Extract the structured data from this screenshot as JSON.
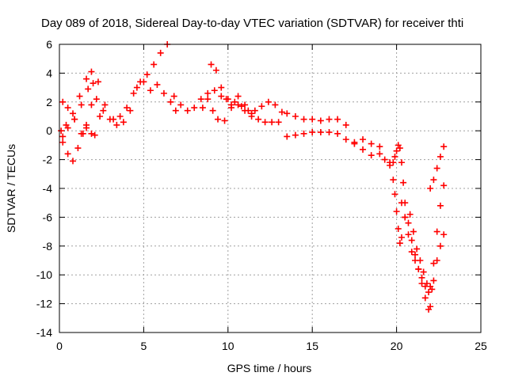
{
  "chart_data": {
    "type": "scatter",
    "title": "Day 089 of 2018, Sidereal Day-to-day VTEC variation (SDTVAR) for receiver thti",
    "xlabel": "GPS time / hours",
    "ylabel": "SDTVAR / TECUs",
    "xlim": [
      0,
      25
    ],
    "ylim": [
      -14,
      6
    ],
    "xticks": [
      "0",
      "5",
      "10",
      "15",
      "20",
      "25"
    ],
    "yticks": [
      "-14",
      "-12",
      "-10",
      "-8",
      "-6",
      "-4",
      "-2",
      "0",
      "2",
      "4",
      "6"
    ],
    "grid": true,
    "marker": "+",
    "color": "#ff0000",
    "series": [
      {
        "x": [
          0.1,
          0.4,
          0.8,
          1.2,
          1.6,
          1.9,
          2.3,
          2.7,
          3.2,
          3.6,
          4.0,
          4.4,
          4.8,
          5.2,
          5.6,
          6.0,
          6.4
        ],
        "y": [
          0.0,
          0.4,
          1.2,
          2.4,
          3.6,
          4.1,
          3.4,
          1.8,
          0.8,
          1.0,
          1.6,
          2.6,
          3.4,
          3.9,
          4.6,
          5.4,
          6.0
        ]
      },
      {
        "x": [
          0.2,
          0.5,
          0.9,
          1.3,
          1.6,
          1.9,
          2.2,
          2.6,
          3.0,
          3.4,
          3.8,
          4.2
        ],
        "y": [
          2.0,
          1.6,
          0.8,
          -0.2,
          0.2,
          1.8,
          2.2,
          1.4,
          0.8,
          0.4,
          0.6,
          1.4
        ]
      },
      {
        "x": [
          0.2,
          0.5,
          0.8,
          1.1,
          1.4,
          1.6,
          1.9,
          2.1
        ],
        "y": [
          -0.8,
          -1.6,
          -2.1,
          -1.2,
          -0.2,
          0.4,
          -0.2,
          -0.3
        ]
      },
      {
        "x": [
          0.2,
          0.5,
          0.9,
          1.3,
          1.7,
          2.0,
          2.4
        ],
        "y": [
          -0.4,
          0.2,
          0.8,
          1.8,
          2.9,
          3.3,
          1.0
        ]
      },
      {
        "x": [
          4.6,
          5.0,
          5.4,
          5.8,
          6.2,
          6.6,
          6.9
        ],
        "y": [
          3.0,
          3.4,
          2.8,
          3.2,
          2.6,
          2.0,
          1.4
        ]
      },
      {
        "x": [
          6.8,
          7.2,
          7.6,
          8.0,
          8.4,
          8.8,
          9.2,
          9.6,
          10.0,
          10.4,
          10.8,
          11.2,
          11.6,
          12.0,
          12.4,
          12.8,
          13.2
        ],
        "y": [
          2.4,
          1.8,
          1.4,
          1.6,
          2.2,
          2.6,
          2.8,
          2.4,
          2.2,
          2.0,
          1.7,
          1.4,
          1.4,
          1.7,
          2.0,
          1.8,
          1.3
        ]
      },
      {
        "x": [
          9.0,
          9.3,
          9.6,
          9.9,
          10.2,
          10.6,
          11.0,
          11.4,
          11.8,
          12.2,
          12.6,
          13.0
        ],
        "y": [
          4.6,
          4.2,
          3.0,
          2.2,
          1.8,
          1.8,
          1.4,
          1.0,
          0.8,
          0.6,
          0.6,
          0.6
        ]
      },
      {
        "x": [
          8.5,
          8.8,
          9.1,
          9.4,
          9.8,
          10.2,
          10.6,
          11.0,
          11.4
        ],
        "y": [
          1.6,
          2.2,
          1.4,
          0.8,
          0.7,
          1.6,
          2.4,
          1.8,
          1.2
        ]
      },
      {
        "x": [
          13.5,
          14.0,
          14.5,
          15.0,
          15.5,
          16.0,
          16.5,
          17.0,
          17.5,
          18.0,
          18.5,
          19.0
        ],
        "y": [
          1.2,
          1.0,
          0.8,
          0.8,
          0.7,
          0.8,
          0.8,
          0.4,
          -0.8,
          -0.6,
          -0.9,
          -1.1
        ]
      },
      {
        "x": [
          13.5,
          14.0,
          14.5,
          15.0,
          15.5,
          16.0,
          16.5,
          17.0,
          17.5,
          18.0,
          18.5
        ],
        "y": [
          -0.4,
          -0.3,
          -0.2,
          -0.1,
          -0.1,
          -0.1,
          -0.2,
          -0.6,
          -0.9,
          -1.3,
          -1.7
        ]
      },
      {
        "x": [
          19.0,
          19.3,
          19.6,
          19.8,
          19.9,
          20.0,
          20.1,
          20.2,
          20.3,
          20.4,
          20.5
        ],
        "y": [
          -1.6,
          -2.0,
          -2.4,
          -2.2,
          -1.8,
          -1.4,
          -1.0,
          -1.2,
          -2.2,
          -3.6,
          -5.0
        ]
      },
      {
        "x": [
          19.6,
          19.8,
          19.9,
          20.0,
          20.1,
          20.2,
          20.3,
          20.5,
          20.7,
          20.9,
          21.1,
          21.3,
          21.5,
          21.7,
          21.9,
          22.0
        ],
        "y": [
          -2.2,
          -3.4,
          -4.4,
          -5.6,
          -6.8,
          -7.8,
          -7.4,
          -6.0,
          -6.4,
          -7.6,
          -8.6,
          -9.6,
          -10.6,
          -11.6,
          -12.4,
          -12.2
        ]
      },
      {
        "x": [
          20.3,
          20.5,
          20.7,
          20.9,
          21.1,
          21.3,
          21.5,
          21.7,
          21.9,
          22.1,
          22.2,
          22.4,
          22.6,
          22.8
        ],
        "y": [
          -5.0,
          -6.0,
          -7.2,
          -8.4,
          -9.0,
          -9.6,
          -10.2,
          -10.8,
          -11.2,
          -11.0,
          -10.4,
          -9.0,
          -8.0,
          -7.2
        ]
      },
      {
        "x": [
          20.8,
          21.0,
          21.2,
          21.4,
          21.6,
          21.8,
          22.0,
          22.2,
          22.4,
          22.6,
          22.8
        ],
        "y": [
          -5.8,
          -7.0,
          -8.2,
          -9.0,
          -9.8,
          -10.6,
          -10.8,
          -9.2,
          -7.0,
          -5.2,
          -3.8
        ]
      },
      {
        "x": [
          22.0,
          22.2,
          22.4,
          22.6,
          22.8
        ],
        "y": [
          -4.0,
          -3.4,
          -2.6,
          -1.8,
          -1.1
        ]
      }
    ]
  }
}
